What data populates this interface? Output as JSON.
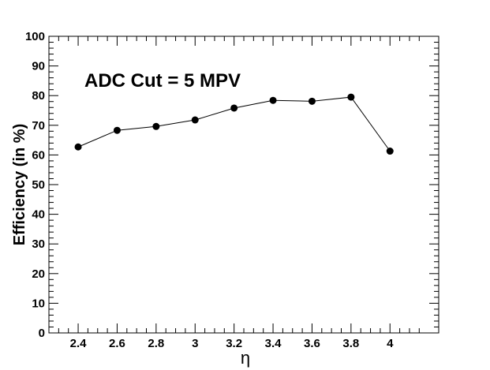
{
  "chart_data": {
    "type": "line",
    "title": "",
    "annotation": "ADC Cut = 5 MPV",
    "xlabel": "η",
    "ylabel": "Efficiency (in %)",
    "xlim": [
      2.25,
      4.25
    ],
    "ylim": [
      0,
      100
    ],
    "x_ticks": [
      2.4,
      2.6,
      2.8,
      3,
      3.2,
      3.4,
      3.6,
      3.8,
      4
    ],
    "x_tick_labels": [
      "2.4",
      "2.6",
      "2.8",
      "3",
      "3.2",
      "3.4",
      "3.6",
      "3.8",
      "4"
    ],
    "y_ticks": [
      0,
      10,
      20,
      30,
      40,
      50,
      60,
      70,
      80,
      90,
      100
    ],
    "y_tick_labels": [
      "0",
      "10",
      "20",
      "30",
      "40",
      "50",
      "60",
      "70",
      "80",
      "90",
      "100"
    ],
    "grid": false,
    "series": [
      {
        "x": [
          2.4,
          2.6,
          2.8,
          3.0,
          3.2,
          3.4,
          3.6,
          3.8,
          4.0
        ],
        "y": [
          62.7,
          68.3,
          69.6,
          71.8,
          75.8,
          78.4,
          78.1,
          79.5,
          61.3
        ],
        "marker": "circle",
        "color": "#000000"
      }
    ]
  }
}
